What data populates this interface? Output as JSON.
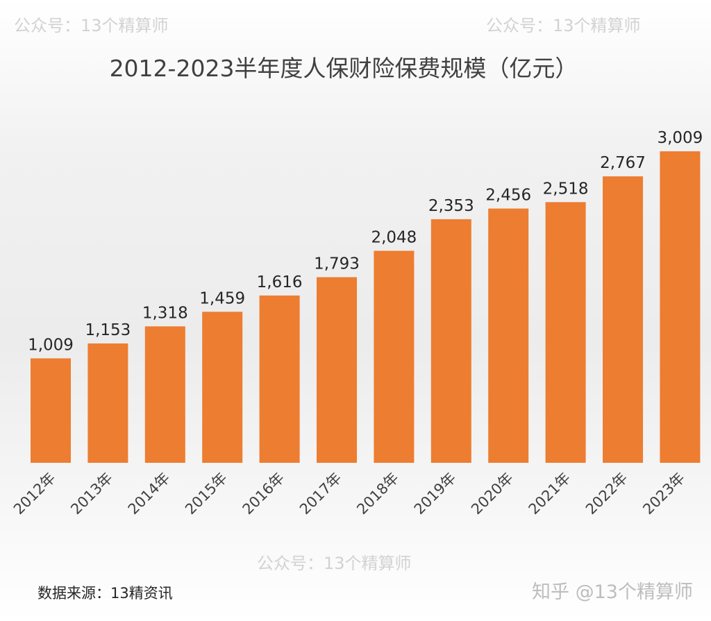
{
  "chart_data": {
    "type": "bar",
    "title": "2012-2023半年度人保财险保费规模（亿元）",
    "categories": [
      "2012年",
      "2013年",
      "2014年",
      "2015年",
      "2016年",
      "2017年",
      "2018年",
      "2019年",
      "2020年",
      "2021年",
      "2022年",
      "2023年"
    ],
    "values": [
      1009,
      1153,
      1318,
      1459,
      1616,
      1793,
      2048,
      2353,
      2456,
      2518,
      2767,
      3009
    ],
    "data_labels": [
      "1,009",
      "1,153",
      "1,318",
      "1,459",
      "1,616",
      "1,793",
      "2,048",
      "2,353",
      "2,456",
      "2,518",
      "2,767",
      "3,009"
    ],
    "xlabel": "",
    "ylabel": "",
    "ylim": [
      0,
      3200
    ],
    "grid": false,
    "bar_color": "#ED7D31"
  },
  "footer": {
    "source": "数据来源：13精资讯",
    "brand": "知乎 @13个精算师"
  },
  "watermark": "公众号：13个精算师"
}
